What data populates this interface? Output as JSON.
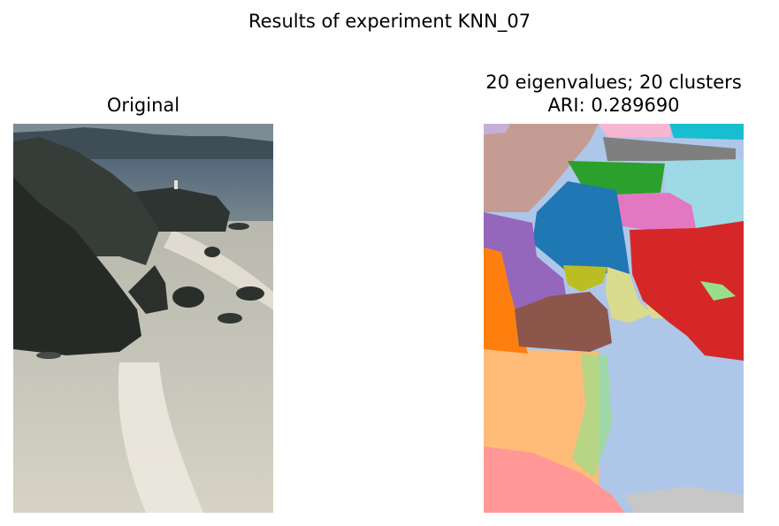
{
  "figure": {
    "suptitle": "Results of experiment KNN_07",
    "left_title": "Original",
    "right_title_line1": "20 eigenvalues; 20 clusters",
    "right_title_line2": "ARI: 0.289690"
  },
  "original_photo": {
    "subject": "coastal cliffs above surf with headland lighthouse and distant hills",
    "colors": {
      "sky": "#6e7d86",
      "hills": "#3f4d57",
      "sea": "#4c5e6a",
      "cliffs": "#2a2f2c",
      "surf": "#c9c6b8",
      "foam": "#e4e1d5"
    }
  },
  "segmentation": {
    "palette": {
      "blue": "#1f77b4",
      "light_blue": "#aec7e8",
      "orange": "#ff7f0e",
      "light_orange": "#ffbb78",
      "green": "#2ca02c",
      "light_green": "#98df8a",
      "red": "#d62728",
      "light_red": "#ff9896",
      "purple": "#9467bd",
      "lavender": "#c5b0d5",
      "brown": "#8c564b",
      "tan": "#c49c94",
      "pink": "#e377c2",
      "light_pink": "#f7b6d2",
      "gray": "#7f7f7f",
      "light_gray": "#c7c7c7",
      "olive": "#bcbd22",
      "khaki": "#dbdb8d",
      "cyan": "#17becf",
      "light_cyan": "#9edae5"
    }
  }
}
